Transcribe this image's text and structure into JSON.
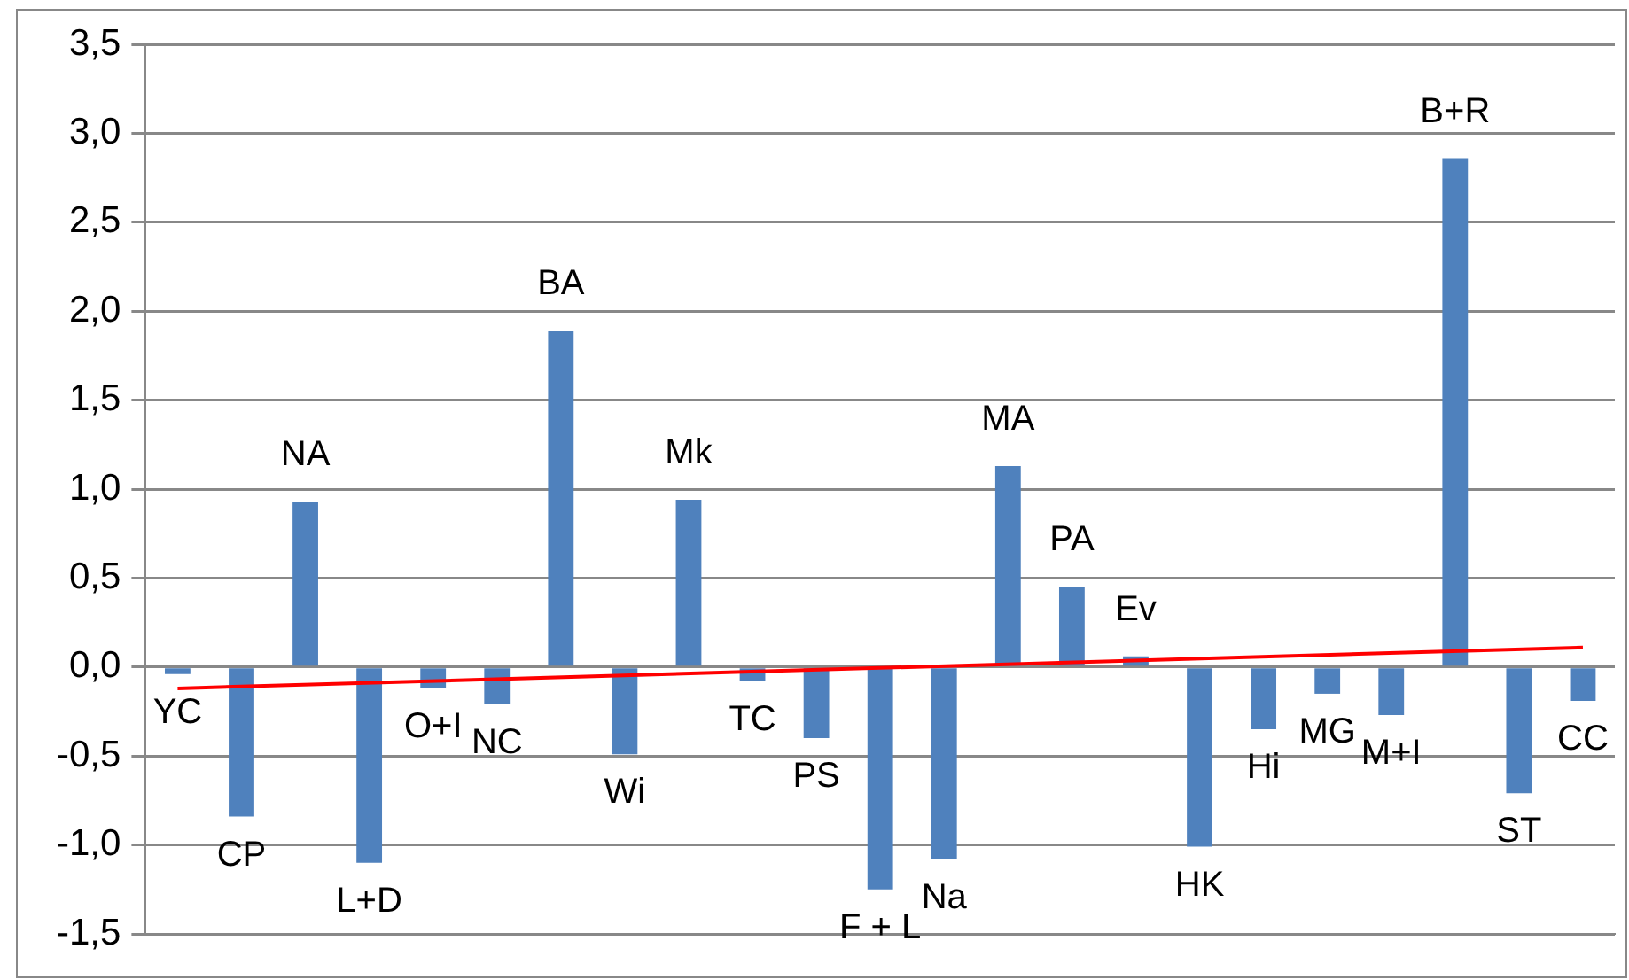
{
  "chart_data": {
    "type": "bar",
    "categories": [
      "YC",
      "CP",
      "NA",
      "L+D",
      "O+I",
      "NC",
      "BA",
      "Wi",
      "Mk",
      "TC",
      "PS",
      "F + L",
      "Na",
      "MA",
      "PA",
      "Ev",
      "HK",
      "Hi",
      "MG",
      "M+I",
      "B+R",
      "ST",
      "CC"
    ],
    "series": [
      {
        "color": "#4f81bd",
        "values": [
          -0.04,
          -0.84,
          0.93,
          -1.1,
          -0.12,
          -0.21,
          1.89,
          -0.49,
          0.94,
          -0.08,
          -0.4,
          -1.25,
          -1.08,
          1.13,
          0.45,
          0.06,
          -1.01,
          -0.35,
          -0.15,
          -0.27,
          2.86,
          -0.71,
          -0.19
        ]
      },
      {
        "type": "line",
        "color": "#ff0000",
        "marker": "none",
        "values": [
          -0.12,
          null,
          null,
          null,
          null,
          null,
          null,
          null,
          null,
          null,
          null,
          null,
          null,
          null,
          null,
          null,
          null,
          null,
          null,
          null,
          null,
          null,
          0.11
        ]
      }
    ],
    "ylim": [
      -1.5,
      3.5
    ],
    "yticks": [
      {
        "value": -1.5,
        "label": "-1,5"
      },
      {
        "value": -1,
        "label": "-1,0"
      },
      {
        "value": -0.5,
        "label": "-0,5"
      },
      {
        "value": 0,
        "label": "0,0"
      },
      {
        "value": 0.5,
        "label": "0,5"
      },
      {
        "value": 1,
        "label": "1,0"
      },
      {
        "value": 1.5,
        "label": "1,5"
      },
      {
        "value": 2,
        "label": "2,0"
      },
      {
        "value": 2.5,
        "label": "2,5"
      },
      {
        "value": 3,
        "label": "3,0"
      },
      {
        "value": 3.5,
        "label": "3,5"
      }
    ],
    "grid": "y",
    "legend": false,
    "tick_labels": "y"
  }
}
